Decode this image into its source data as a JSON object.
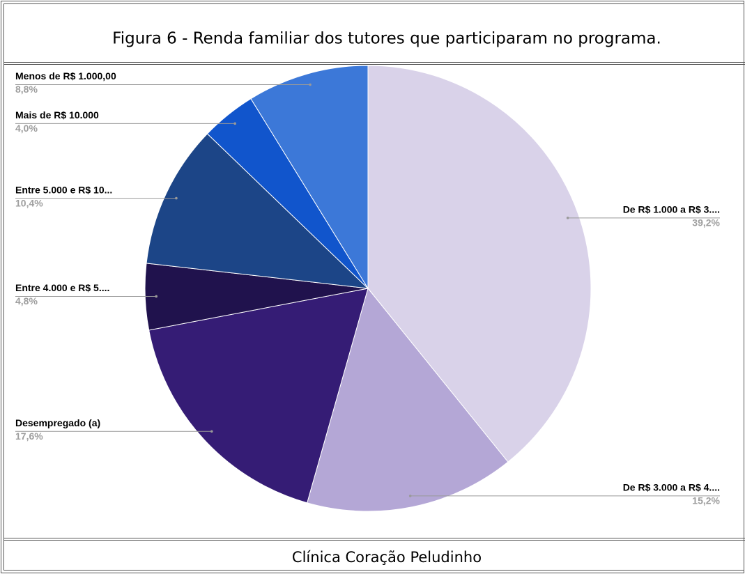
{
  "chart_data": {
    "type": "pie",
    "title": "Figura 6 - Renda familiar dos tutores que participaram no programa.",
    "categories": [
      "De R$ 1.000 a R$ 3....",
      "De R$ 3.000 a R$ 4....",
      "Desempregado (a)",
      "Entre 4.000 e R$ 5....",
      "Entre 5.000 e R$ 10...",
      "Mais de R$ 10.000",
      "Menos de R$ 1.000,00"
    ],
    "values": [
      39.2,
      15.2,
      17.6,
      4.8,
      10.4,
      4.0,
      8.8
    ],
    "value_labels": [
      "39,2%",
      "15,2%",
      "17,6%",
      "4,8%",
      "10,4%",
      "4,0%",
      "8,8%"
    ],
    "colors": [
      "#d9d2e9",
      "#b4a7d6",
      "#351c75",
      "#20124d",
      "#1c4587",
      "#1155cc",
      "#3c78d8"
    ]
  },
  "footer": "Clínica Coração Peludinho"
}
